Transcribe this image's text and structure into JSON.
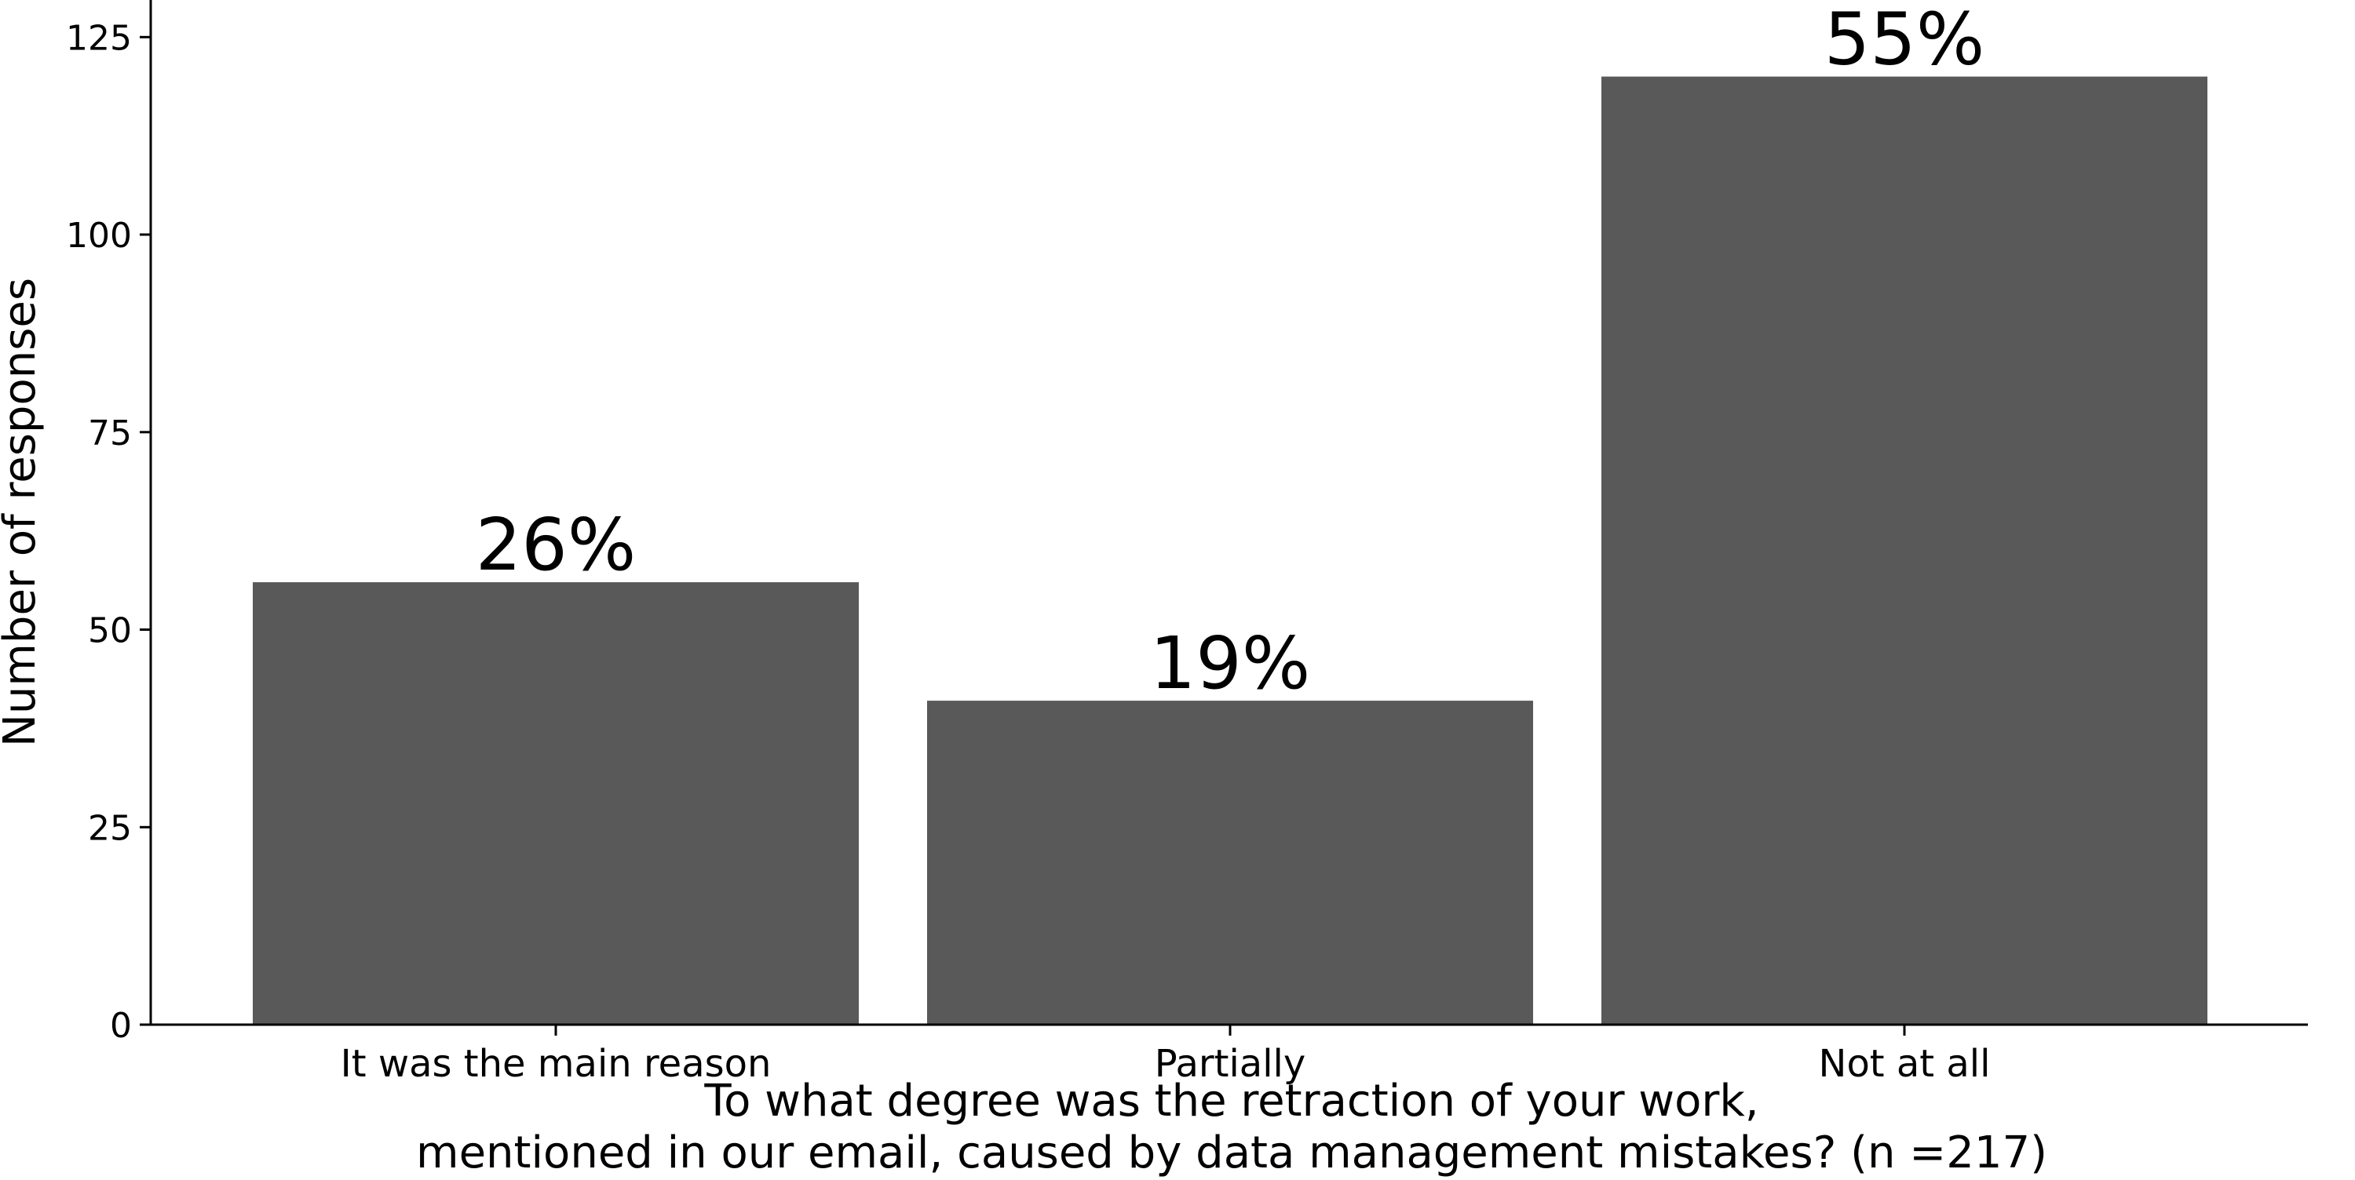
{
  "chart_data": {
    "type": "bar",
    "categories": [
      "It was the main reason",
      "Partially",
      "Not at all"
    ],
    "values": [
      56,
      41,
      120
    ],
    "bar_labels": [
      "26%",
      "19%",
      "55%"
    ],
    "title": "",
    "xlabel_lines": [
      "To what degree was the retraction of your work,",
      "mentioned in our email, caused by data management mistakes? (n =217)"
    ],
    "ylabel": "Number of responses",
    "yticks": [
      0,
      25,
      50,
      75,
      100,
      125
    ],
    "ylim": [
      0,
      130
    ],
    "grid": false,
    "legend": "none",
    "bar_color": "#595959",
    "axis_color": "#000000"
  }
}
